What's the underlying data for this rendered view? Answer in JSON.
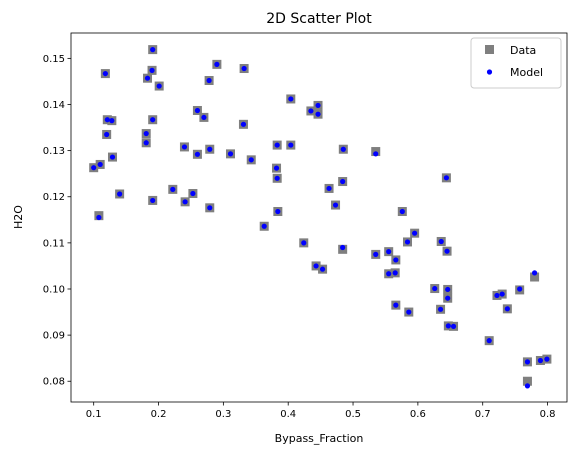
{
  "chart_data": {
    "type": "scatter",
    "title": "2D Scatter Plot",
    "xlabel": "Bypass_Fraction",
    "ylabel": "H2O",
    "xlim": [
      0.065,
      0.83
    ],
    "ylim": [
      0.0755,
      0.1555
    ],
    "xticks": [
      0.1,
      0.2,
      0.3,
      0.4,
      0.5,
      0.6,
      0.7,
      0.8
    ],
    "xtick_labels": [
      "0.1",
      "0.2",
      "0.3",
      "0.4",
      "0.5",
      "0.6",
      "0.7",
      "0.8"
    ],
    "yticks": [
      0.08,
      0.09,
      0.1,
      0.11,
      0.12,
      0.13,
      0.14,
      0.15
    ],
    "ytick_labels": [
      "0.08",
      "0.09",
      "0.10",
      "0.11",
      "0.12",
      "0.13",
      "0.14",
      "0.15"
    ],
    "grid": false,
    "legend_position": "top-right",
    "series": [
      {
        "name": "Data",
        "marker": "square",
        "color": "#7f7f7f",
        "points": [
          [
            0.1,
            0.1263
          ],
          [
            0.108,
            0.1159
          ],
          [
            0.11,
            0.127
          ],
          [
            0.118,
            0.1467
          ],
          [
            0.12,
            0.1335
          ],
          [
            0.121,
            0.1367
          ],
          [
            0.128,
            0.1365
          ],
          [
            0.129,
            0.1286
          ],
          [
            0.14,
            0.1206
          ],
          [
            0.181,
            0.1337
          ],
          [
            0.181,
            0.1317
          ],
          [
            0.183,
            0.1457
          ],
          [
            0.19,
            0.1474
          ],
          [
            0.191,
            0.1519
          ],
          [
            0.191,
            0.1367
          ],
          [
            0.191,
            0.1192
          ],
          [
            0.201,
            0.144
          ],
          [
            0.222,
            0.1216
          ],
          [
            0.24,
            0.1308
          ],
          [
            0.241,
            0.1189
          ],
          [
            0.253,
            0.1207
          ],
          [
            0.26,
            0.1387
          ],
          [
            0.26,
            0.1292
          ],
          [
            0.27,
            0.1372
          ],
          [
            0.278,
            0.1452
          ],
          [
            0.279,
            0.1303
          ],
          [
            0.279,
            0.1176
          ],
          [
            0.29,
            0.1487
          ],
          [
            0.311,
            0.1293
          ],
          [
            0.331,
            0.1357
          ],
          [
            0.332,
            0.1478
          ],
          [
            0.343,
            0.128
          ],
          [
            0.363,
            0.1136
          ],
          [
            0.382,
            0.1262
          ],
          [
            0.383,
            0.124
          ],
          [
            0.383,
            0.1312
          ],
          [
            0.384,
            0.1168
          ],
          [
            0.404,
            0.1412
          ],
          [
            0.404,
            0.1312
          ],
          [
            0.424,
            0.11
          ],
          [
            0.435,
            0.1386
          ],
          [
            0.443,
            0.105
          ],
          [
            0.446,
            0.1379
          ],
          [
            0.446,
            0.1398
          ],
          [
            0.453,
            0.1043
          ],
          [
            0.463,
            0.1218
          ],
          [
            0.473,
            0.1182
          ],
          [
            0.484,
            0.1233
          ],
          [
            0.484,
            0.1086
          ],
          [
            0.485,
            0.1303
          ],
          [
            0.535,
            0.1298
          ],
          [
            0.535,
            0.1075
          ],
          [
            0.555,
            0.1081
          ],
          [
            0.555,
            0.1033
          ],
          [
            0.565,
            0.1035
          ],
          [
            0.566,
            0.1063
          ],
          [
            0.566,
            0.0965
          ],
          [
            0.576,
            0.1168
          ],
          [
            0.584,
            0.1102
          ],
          [
            0.586,
            0.095
          ],
          [
            0.595,
            0.1121
          ],
          [
            0.626,
            0.1001
          ],
          [
            0.635,
            0.0956
          ],
          [
            0.636,
            0.1103
          ],
          [
            0.644,
            0.1241
          ],
          [
            0.645,
            0.1082
          ],
          [
            0.646,
            0.0999
          ],
          [
            0.646,
            0.098
          ],
          [
            0.647,
            0.092
          ],
          [
            0.655,
            0.0919
          ],
          [
            0.71,
            0.0888
          ],
          [
            0.722,
            0.0986
          ],
          [
            0.73,
            0.0989
          ],
          [
            0.738,
            0.0957
          ],
          [
            0.757,
            0.0998
          ],
          [
            0.769,
            0.0842
          ],
          [
            0.769,
            0.08
          ],
          [
            0.78,
            0.1026
          ],
          [
            0.789,
            0.0845
          ],
          [
            0.799,
            0.0848
          ]
        ]
      },
      {
        "name": "Model",
        "marker": "circle",
        "color": "#0000ff",
        "points": [
          [
            0.1,
            0.1263
          ],
          [
            0.108,
            0.1155
          ],
          [
            0.11,
            0.127
          ],
          [
            0.118,
            0.1467
          ],
          [
            0.12,
            0.1335
          ],
          [
            0.121,
            0.1367
          ],
          [
            0.128,
            0.1365
          ],
          [
            0.129,
            0.1286
          ],
          [
            0.14,
            0.1206
          ],
          [
            0.181,
            0.1337
          ],
          [
            0.181,
            0.1317
          ],
          [
            0.183,
            0.1457
          ],
          [
            0.19,
            0.1474
          ],
          [
            0.191,
            0.1519
          ],
          [
            0.191,
            0.1367
          ],
          [
            0.191,
            0.1192
          ],
          [
            0.201,
            0.144
          ],
          [
            0.222,
            0.1216
          ],
          [
            0.24,
            0.1308
          ],
          [
            0.241,
            0.1189
          ],
          [
            0.253,
            0.1207
          ],
          [
            0.26,
            0.1387
          ],
          [
            0.26,
            0.1292
          ],
          [
            0.27,
            0.1372
          ],
          [
            0.278,
            0.1452
          ],
          [
            0.279,
            0.1303
          ],
          [
            0.279,
            0.1176
          ],
          [
            0.29,
            0.1487
          ],
          [
            0.311,
            0.1293
          ],
          [
            0.331,
            0.1357
          ],
          [
            0.332,
            0.1478
          ],
          [
            0.343,
            0.128
          ],
          [
            0.363,
            0.1136
          ],
          [
            0.382,
            0.1262
          ],
          [
            0.383,
            0.124
          ],
          [
            0.383,
            0.1312
          ],
          [
            0.384,
            0.1168
          ],
          [
            0.404,
            0.1412
          ],
          [
            0.404,
            0.1312
          ],
          [
            0.424,
            0.11
          ],
          [
            0.435,
            0.1386
          ],
          [
            0.443,
            0.105
          ],
          [
            0.446,
            0.1379
          ],
          [
            0.446,
            0.1398
          ],
          [
            0.453,
            0.1043
          ],
          [
            0.463,
            0.1218
          ],
          [
            0.473,
            0.1182
          ],
          [
            0.484,
            0.1233
          ],
          [
            0.484,
            0.109
          ],
          [
            0.485,
            0.1303
          ],
          [
            0.535,
            0.1293
          ],
          [
            0.535,
            0.1075
          ],
          [
            0.555,
            0.1081
          ],
          [
            0.555,
            0.1033
          ],
          [
            0.565,
            0.1035
          ],
          [
            0.566,
            0.1063
          ],
          [
            0.566,
            0.0965
          ],
          [
            0.576,
            0.1168
          ],
          [
            0.584,
            0.1102
          ],
          [
            0.586,
            0.095
          ],
          [
            0.595,
            0.1121
          ],
          [
            0.626,
            0.1001
          ],
          [
            0.635,
            0.0956
          ],
          [
            0.636,
            0.1103
          ],
          [
            0.644,
            0.1241
          ],
          [
            0.645,
            0.1082
          ],
          [
            0.646,
            0.0999
          ],
          [
            0.646,
            0.098
          ],
          [
            0.647,
            0.092
          ],
          [
            0.655,
            0.0919
          ],
          [
            0.71,
            0.0888
          ],
          [
            0.722,
            0.0986
          ],
          [
            0.73,
            0.0989
          ],
          [
            0.738,
            0.0957
          ],
          [
            0.757,
            0.1
          ],
          [
            0.769,
            0.0842
          ],
          [
            0.769,
            0.079
          ],
          [
            0.78,
            0.1035
          ],
          [
            0.789,
            0.0845
          ],
          [
            0.799,
            0.0848
          ]
        ]
      }
    ]
  }
}
